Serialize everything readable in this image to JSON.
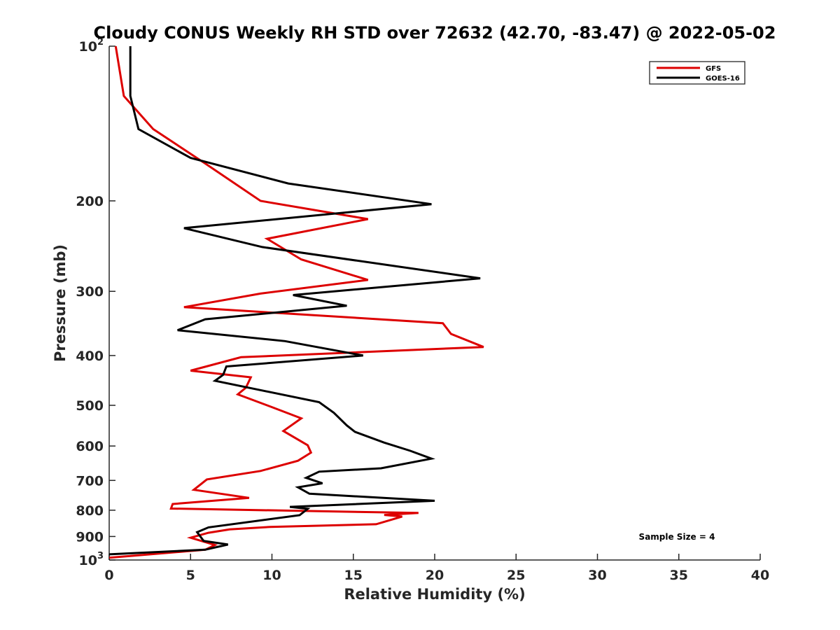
{
  "chart_data": {
    "type": "line",
    "title": "Cloudy CONUS Weekly RH STD over 72632 (42.70, -83.47) @ 2022-05-02",
    "xlabel": "Relative Humidity (%)",
    "ylabel": "Pressure (mb)",
    "xlim": [
      0,
      40
    ],
    "ylim": [
      100,
      1000
    ],
    "y_scale": "log",
    "y_reversed": true,
    "grid": false,
    "legend_position": "top-right",
    "x_ticks": [
      0,
      5,
      10,
      15,
      20,
      25,
      30,
      35,
      40
    ],
    "x_tick_labels": [
      "0",
      "5",
      "10",
      "15",
      "20",
      "25",
      "30",
      "35",
      "40"
    ],
    "y_ticks": [
      100,
      200,
      300,
      400,
      500,
      600,
      700,
      800,
      900,
      1000
    ],
    "y_tick_labels": [
      {
        "base": "10",
        "exp": "2"
      },
      {
        "base": "200",
        "exp": ""
      },
      {
        "base": "300",
        "exp": ""
      },
      {
        "base": "400",
        "exp": ""
      },
      {
        "base": "500",
        "exp": ""
      },
      {
        "base": "600",
        "exp": ""
      },
      {
        "base": "700",
        "exp": ""
      },
      {
        "base": "800",
        "exp": ""
      },
      {
        "base": "900",
        "exp": ""
      },
      {
        "base": "10",
        "exp": "3"
      }
    ],
    "annotation": "Sample Size = 4",
    "series": [
      {
        "name": "GFS",
        "color": "#dd0000",
        "x": [
          0.4,
          0.9,
          2.7,
          6.0,
          9.3,
          15.9,
          9.7,
          11.8,
          15.9,
          9.3,
          4.6,
          20.5,
          21.0,
          23.0,
          8.1,
          5.0,
          8.7,
          8.4,
          7.9,
          10.0,
          11.8,
          10.7,
          12.2,
          12.4,
          11.6,
          9.3,
          6.0,
          5.2,
          8.6,
          3.9,
          3.8,
          19.0,
          16.9,
          18.0,
          16.4,
          9.9,
          7.4,
          6.1,
          5.0,
          6.5,
          5.9,
          0.0
        ],
        "y": [
          100,
          125,
          145,
          170,
          200,
          217,
          237,
          260,
          285,
          303,
          322,
          346,
          363,
          385,
          403,
          428,
          441,
          462,
          476,
          504,
          530,
          561,
          598,
          618,
          641,
          671,
          697,
          730,
          757,
          778,
          794,
          810,
          817,
          823,
          852,
          862,
          872,
          885,
          905,
          935,
          955,
          990
        ]
      },
      {
        "name": "GOES-16",
        "color": "#000000",
        "x": [
          1.3,
          1.3,
          1.8,
          5.0,
          11.0,
          19.8,
          4.6,
          9.4,
          22.8,
          11.3,
          14.6,
          5.9,
          4.2,
          10.8,
          15.6,
          7.2,
          7.0,
          6.5,
          12.9,
          13.8,
          14.6,
          15.1,
          16.9,
          18.5,
          19.8,
          16.7,
          12.9,
          12.1,
          13.1,
          11.6,
          12.3,
          20.0,
          11.1,
          12.2,
          11.7,
          6.1,
          5.4,
          5.8,
          7.3,
          5.9,
          0.0
        ],
        "y": [
          100,
          125,
          145,
          165,
          185,
          203,
          226,
          246,
          283,
          305,
          320,
          340,
          357,
          375,
          400,
          420,
          436,
          448,
          493,
          517,
          547,
          563,
          591,
          613,
          635,
          663,
          673,
          692,
          709,
          722,
          743,
          767,
          788,
          795,
          818,
          864,
          883,
          918,
          933,
          955,
          975
        ]
      }
    ]
  }
}
